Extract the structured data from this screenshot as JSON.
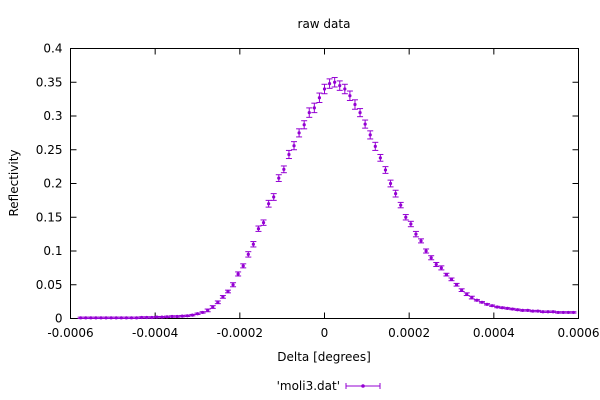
{
  "chart_data": {
    "type": "scatter",
    "title": "raw data",
    "xlabel": "Delta [degrees]",
    "ylabel": "Reflectivity",
    "xlim": [
      -0.0006,
      0.0006
    ],
    "ylim": [
      0,
      0.4
    ],
    "x_ticks": [
      "-0.0006",
      "-0.0004",
      "-0.0002",
      "0",
      "0.0002",
      "0.0004",
      "0.0006"
    ],
    "y_ticks": [
      "0",
      "0.05",
      "0.1",
      "0.15",
      "0.2",
      "0.25",
      "0.3",
      "0.35",
      "0.4"
    ],
    "grid": false,
    "legend_position": "bottom-center",
    "series": [
      {
        "name": "'moli3.dat'",
        "color": "#9400d3",
        "marker": "point-with-errorbars",
        "x": [
          -0.000576,
          -0.000564,
          -0.000552,
          -0.00054,
          -0.000528,
          -0.000516,
          -0.000504,
          -0.000492,
          -0.00048,
          -0.000468,
          -0.000456,
          -0.000444,
          -0.000432,
          -0.00042,
          -0.000408,
          -0.000396,
          -0.000384,
          -0.000372,
          -0.00036,
          -0.000348,
          -0.000336,
          -0.000324,
          -0.000312,
          -0.0003,
          -0.000288,
          -0.000276,
          -0.000264,
          -0.000252,
          -0.00024,
          -0.000228,
          -0.000216,
          -0.000204,
          -0.000192,
          -0.00018,
          -0.000168,
          -0.000156,
          -0.000144,
          -0.000132,
          -0.00012,
          -0.000108,
          -9.6e-05,
          -8.4e-05,
          -7.2e-05,
          -6e-05,
          -4.8e-05,
          -3.6e-05,
          -2.4e-05,
          -1.2e-05,
          0,
          1.2e-05,
          2.4e-05,
          3.6e-05,
          4.8e-05,
          6e-05,
          7.2e-05,
          8.4e-05,
          9.6e-05,
          0.000108,
          0.00012,
          0.000132,
          0.000144,
          0.000156,
          0.000168,
          0.00018,
          0.000192,
          0.000204,
          0.000216,
          0.000228,
          0.00024,
          0.000252,
          0.000264,
          0.000276,
          0.000288,
          0.0003,
          0.000312,
          0.000324,
          0.000336,
          0.000348,
          0.00036,
          0.000372,
          0.000384,
          0.000396,
          0.000408,
          0.00042,
          0.000432,
          0.000444,
          0.000456,
          0.000468,
          0.00048,
          0.000492,
          0.000504,
          0.000516,
          0.000528,
          0.00054,
          0.000552,
          0.000564,
          0.000576,
          0.000588
        ],
        "y": [
          0.001,
          0.001,
          0.001,
          0.001,
          0.001,
          0.001,
          0.001,
          0.001,
          0.001,
          0.001,
          0.001,
          0.001,
          0.0015,
          0.0015,
          0.0015,
          0.002,
          0.002,
          0.0025,
          0.003,
          0.003,
          0.0035,
          0.004,
          0.005,
          0.007,
          0.009,
          0.012,
          0.017,
          0.024,
          0.032,
          0.04,
          0.05,
          0.066,
          0.078,
          0.095,
          0.11,
          0.133,
          0.142,
          0.17,
          0.18,
          0.208,
          0.221,
          0.243,
          0.256,
          0.275,
          0.287,
          0.305,
          0.312,
          0.327,
          0.34,
          0.348,
          0.35,
          0.345,
          0.34,
          0.33,
          0.317,
          0.305,
          0.288,
          0.272,
          0.255,
          0.238,
          0.22,
          0.2,
          0.185,
          0.168,
          0.15,
          0.14,
          0.125,
          0.115,
          0.1,
          0.09,
          0.08,
          0.075,
          0.065,
          0.058,
          0.05,
          0.042,
          0.036,
          0.031,
          0.027,
          0.024,
          0.021,
          0.019,
          0.017,
          0.016,
          0.015,
          0.014,
          0.013,
          0.012,
          0.012,
          0.011,
          0.011,
          0.01,
          0.01,
          0.01,
          0.009,
          0.009,
          0.009,
          0.009
        ],
        "err": [
          0.001,
          0.001,
          0.001,
          0.001,
          0.001,
          0.001,
          0.001,
          0.001,
          0.001,
          0.001,
          0.001,
          0.001,
          0.001,
          0.001,
          0.001,
          0.001,
          0.001,
          0.001,
          0.001,
          0.001,
          0.001,
          0.001,
          0.001,
          0.001,
          0.001,
          0.002,
          0.002,
          0.002,
          0.002,
          0.002,
          0.003,
          0.003,
          0.003,
          0.004,
          0.004,
          0.004,
          0.004,
          0.005,
          0.005,
          0.005,
          0.005,
          0.006,
          0.006,
          0.006,
          0.006,
          0.007,
          0.007,
          0.007,
          0.007,
          0.007,
          0.007,
          0.007,
          0.007,
          0.007,
          0.007,
          0.006,
          0.006,
          0.006,
          0.006,
          0.005,
          0.005,
          0.005,
          0.005,
          0.004,
          0.004,
          0.004,
          0.004,
          0.003,
          0.003,
          0.003,
          0.003,
          0.003,
          0.002,
          0.002,
          0.002,
          0.002,
          0.002,
          0.002,
          0.001,
          0.001,
          0.001,
          0.001,
          0.001,
          0.001,
          0.001,
          0.001,
          0.001,
          0.001,
          0.001,
          0.001,
          0.001,
          0.001,
          0.001,
          0.001,
          0.001,
          0.001,
          0.001,
          0.001
        ]
      }
    ]
  }
}
